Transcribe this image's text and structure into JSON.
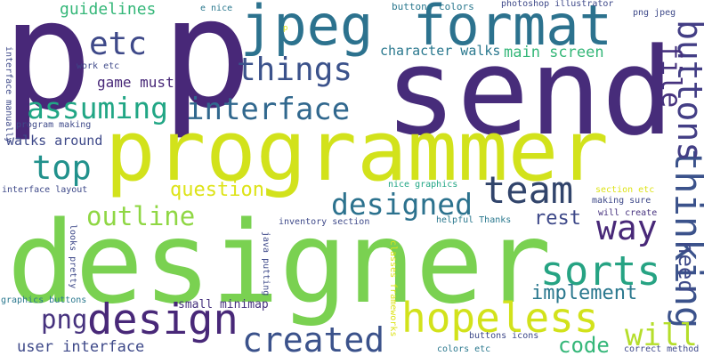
{
  "colors": {
    "background": "#ffffff",
    "palette": [
      "#440154",
      "#482878",
      "#3e4989",
      "#31688e",
      "#26828e",
      "#1f9e89",
      "#35b779",
      "#6ece58",
      "#b5de2b",
      "#fde725"
    ]
  },
  "words": [
    {
      "text": "p",
      "color": "#482878",
      "orientation": "horizontal"
    },
    {
      "text": "p",
      "color": "#482878",
      "orientation": "horizontal"
    },
    {
      "text": "send",
      "color": "#472c7a",
      "orientation": "horizontal"
    },
    {
      "text": "programmer",
      "color": "#d2e21b",
      "orientation": "horizontal"
    },
    {
      "text": "designer",
      "color": "#7ad151",
      "orientation": "horizontal"
    },
    {
      "text": "jpeg",
      "color": "#2c728e",
      "orientation": "horizontal"
    },
    {
      "text": "format",
      "color": "#2c728e",
      "orientation": "horizontal"
    },
    {
      "text": "design",
      "color": "#482878",
      "orientation": "horizontal"
    },
    {
      "text": "hopeless",
      "color": "#d2e21b",
      "orientation": "horizontal"
    },
    {
      "text": "team",
      "color": "#31446b",
      "orientation": "horizontal"
    },
    {
      "text": "thinking",
      "color": "#3b528b",
      "orientation": "vertical"
    },
    {
      "text": "buttons",
      "color": "#433e85",
      "orientation": "vertical"
    },
    {
      "text": "file",
      "color": "#46327e",
      "orientation": "vertical"
    },
    {
      "text": "interface",
      "color": "#31688e",
      "orientation": "horizontal"
    },
    {
      "text": "things",
      "color": "#3b528b",
      "orientation": "horizontal"
    },
    {
      "text": "etc",
      "color": "#3e4989",
      "orientation": "horizontal"
    },
    {
      "text": "assuming",
      "color": "#21a685",
      "orientation": "horizontal"
    },
    {
      "text": "top",
      "color": "#21918c",
      "orientation": "horizontal"
    },
    {
      "text": "created",
      "color": "#3b528b",
      "orientation": "horizontal"
    },
    {
      "text": "sorts",
      "color": "#26a383",
      "orientation": "horizontal"
    },
    {
      "text": "designed",
      "color": "#2c728e",
      "orientation": "horizontal"
    },
    {
      "text": "way",
      "color": "#482878",
      "orientation": "horizontal"
    },
    {
      "text": "outline",
      "color": "#8fd744",
      "orientation": "horizontal"
    },
    {
      "text": "png",
      "color": "#46327e",
      "orientation": "horizontal"
    },
    {
      "text": "will",
      "color": "#b5de2b",
      "orientation": "horizontal"
    },
    {
      "text": "code",
      "color": "#35b779",
      "orientation": "horizontal"
    },
    {
      "text": "need",
      "color": "#3e4989",
      "orientation": "vertical"
    },
    {
      "text": "implement",
      "color": "#2a788e",
      "orientation": "horizontal"
    },
    {
      "text": "rest",
      "color": "#3e4989",
      "orientation": "horizontal"
    },
    {
      "text": "question",
      "color": "#dde318",
      "orientation": "horizontal"
    },
    {
      "text": "guidelines",
      "color": "#35b779",
      "orientation": "horizontal"
    },
    {
      "text": "main screen",
      "color": "#35b779",
      "orientation": "horizontal"
    },
    {
      "text": "game must",
      "color": "#482878",
      "orientation": "horizontal"
    },
    {
      "text": "character walks",
      "color": "#2a788e",
      "orientation": "horizontal"
    },
    {
      "text": "walks around",
      "color": "#3e4989",
      "orientation": "horizontal"
    },
    {
      "text": "user interface",
      "color": "#3e4989",
      "orientation": "horizontal"
    },
    {
      "text": "small minimap",
      "color": "#46327e",
      "orientation": "horizontal"
    },
    {
      "text": "e nice",
      "color": "#2a788e",
      "orientation": "horizontal"
    },
    {
      "text": "buttons colors",
      "color": "#2a788e",
      "orientation": "horizontal"
    },
    {
      "text": "photoshop illustrator",
      "color": "#3e4989",
      "orientation": "horizontal"
    },
    {
      "text": "png jpeg",
      "color": "#3e4989",
      "orientation": "horizontal"
    },
    {
      "text": "work etc",
      "color": "#3e4989",
      "orientation": "horizontal"
    },
    {
      "text": "interface manually",
      "color": "#3e4989",
      "orientation": "vertical"
    },
    {
      "text": "program making",
      "color": "#3e4989",
      "orientation": "horizontal"
    },
    {
      "text": "interface layout",
      "color": "#3e4989",
      "orientation": "horizontal"
    },
    {
      "text": "nice graphics",
      "color": "#21a685",
      "orientation": "horizontal"
    },
    {
      "text": "section etc",
      "color": "#dde318",
      "orientation": "horizontal"
    },
    {
      "text": "making sure",
      "color": "#3e4989",
      "orientation": "horizontal"
    },
    {
      "text": "will create",
      "color": "#46327e",
      "orientation": "horizontal"
    },
    {
      "text": "inventory section",
      "color": "#3e4989",
      "orientation": "horizontal"
    },
    {
      "text": "helpful Thanks",
      "color": "#2a788e",
      "orientation": "horizontal"
    },
    {
      "text": "looks pretty",
      "color": "#3e4989",
      "orientation": "vertical"
    },
    {
      "text": "java putting",
      "color": "#3e4989",
      "orientation": "vertical"
    },
    {
      "text": "classes frameworks",
      "color": "#dde318",
      "orientation": "vertical"
    },
    {
      "text": "graphics buttons",
      "color": "#2a788e",
      "orientation": "horizontal"
    },
    {
      "text": "buttons icons",
      "color": "#3e4989",
      "orientation": "horizontal"
    },
    {
      "text": "colors etc",
      "color": "#2a788e",
      "orientation": "horizontal"
    },
    {
      "text": "correct method",
      "color": "#3e4989",
      "orientation": "horizontal"
    },
    {
      "text": "p",
      "color": "#dde318",
      "orientation": "horizontal"
    }
  ]
}
